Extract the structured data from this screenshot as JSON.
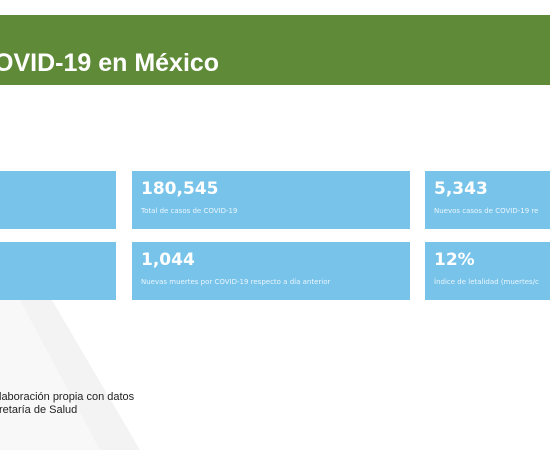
{
  "title": "OVID-19 en México",
  "cards": [
    {
      "value": "",
      "label": ""
    },
    {
      "value": "180,545",
      "label": "Total de casos de COVID-19"
    },
    {
      "value": "5,343",
      "label": "Nuevos casos de COVID-19 re"
    },
    {
      "value": "",
      "label": ""
    },
    {
      "value": "1,044",
      "label": "Nuevas muertes por COVID-19 respecto a día anterior"
    },
    {
      "value": "12%",
      "label": "Índice de letalidad (muertes/c"
    }
  ],
  "source": {
    "line1": "laboración propia con datos",
    "line2": "retaría de Salud"
  },
  "colors": {
    "banner": "#5f8a38",
    "card": "#77c3ea"
  }
}
